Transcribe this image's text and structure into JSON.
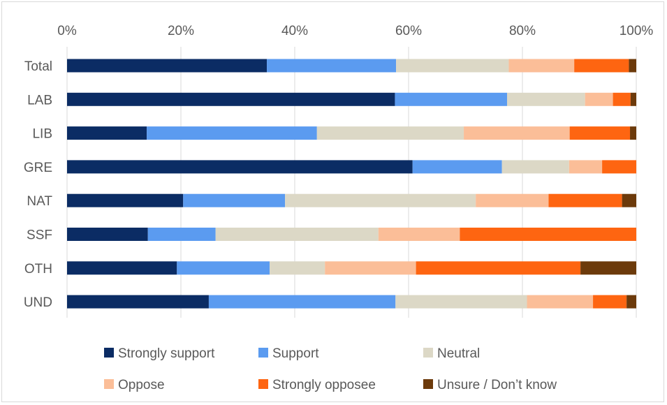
{
  "chart_data": {
    "type": "bar",
    "orientation": "horizontal",
    "stacked": "percent",
    "categories": [
      "Total",
      "LAB",
      "LIB",
      "GRE",
      "NAT",
      "SSF",
      "OTH",
      "UND"
    ],
    "x_ticks": [
      "0%",
      "20%",
      "40%",
      "60%",
      "80%",
      "100%"
    ],
    "xlim": [
      0,
      100
    ],
    "x_axis_position": "top",
    "grid": "vertical",
    "legend_position": "bottom",
    "series": [
      {
        "name": "Strongly support",
        "color": "#0b2c64",
        "values": [
          35.1,
          57.6,
          14.0,
          60.7,
          20.4,
          14.2,
          19.3,
          24.9
        ]
      },
      {
        "name": "Support",
        "color": "#5b9bf0",
        "values": [
          22.7,
          19.7,
          29.9,
          15.7,
          17.9,
          11.9,
          16.3,
          32.8
        ]
      },
      {
        "name": "Neutral",
        "color": "#dcd8c6",
        "values": [
          19.8,
          13.7,
          25.8,
          11.8,
          33.5,
          28.6,
          9.7,
          23.1
        ]
      },
      {
        "name": "Oppose",
        "color": "#fbbe98",
        "values": [
          11.5,
          4.9,
          18.6,
          5.8,
          12.8,
          14.3,
          16.0,
          11.6
        ]
      },
      {
        "name": "Strongly opposee",
        "color": "#fe6511",
        "values": [
          9.6,
          3.1,
          10.6,
          6.0,
          12.9,
          31.0,
          28.9,
          5.9
        ]
      },
      {
        "name": "Unsure / Don’t know",
        "color": "#6c3a0b",
        "values": [
          1.3,
          1.0,
          1.1,
          0.0,
          2.5,
          0.0,
          9.8,
          1.7
        ]
      }
    ]
  }
}
